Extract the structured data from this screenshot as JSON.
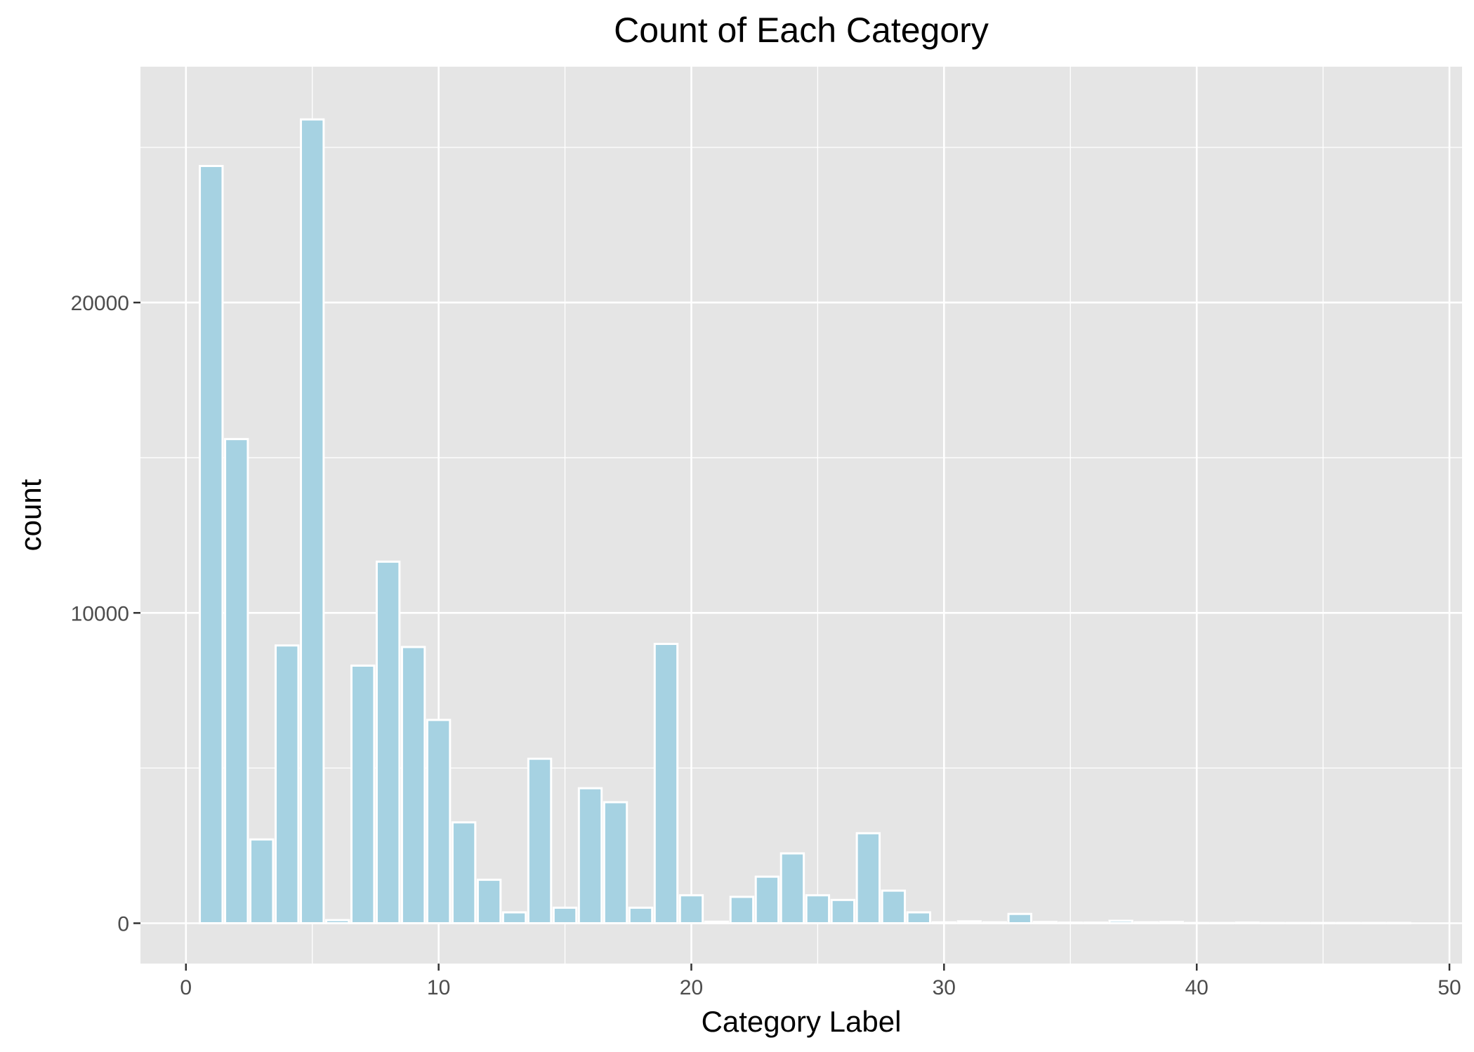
{
  "chart_data": {
    "type": "bar",
    "title": "Count of Each Category",
    "xlabel": "Category Label",
    "ylabel": "count",
    "xlim": [
      -1.8,
      50.5
    ],
    "ylim": [
      -1300,
      27600
    ],
    "x_ticks": [
      0,
      10,
      20,
      30,
      40,
      50
    ],
    "y_ticks": [
      0,
      10000,
      20000
    ],
    "grid": true,
    "legend": "none",
    "bar_fill": "#a6d2e2",
    "bar_outline": "#ffffff",
    "panel_bg": "#e5e5e5",
    "x": [
      1,
      2,
      3,
      4,
      5,
      6,
      7,
      8,
      9,
      10,
      11,
      12,
      13,
      14,
      15,
      16,
      17,
      18,
      19,
      20,
      21,
      22,
      23,
      24,
      25,
      26,
      27,
      28,
      29,
      30,
      31,
      32,
      33,
      34,
      35,
      36,
      37,
      38,
      39,
      40,
      41,
      42,
      43,
      44,
      45,
      46,
      47,
      48
    ],
    "values": [
      24400,
      15600,
      2700,
      8950,
      25900,
      100,
      8300,
      11650,
      8900,
      6550,
      3250,
      1400,
      350,
      5300,
      500,
      4350,
      3900,
      500,
      9000,
      900,
      50,
      850,
      1500,
      2250,
      900,
      750,
      2900,
      1050,
      350,
      30,
      60,
      30,
      300,
      40,
      20,
      20,
      80,
      30,
      40,
      10,
      10,
      20,
      10,
      10,
      10,
      10,
      10,
      10
    ]
  }
}
